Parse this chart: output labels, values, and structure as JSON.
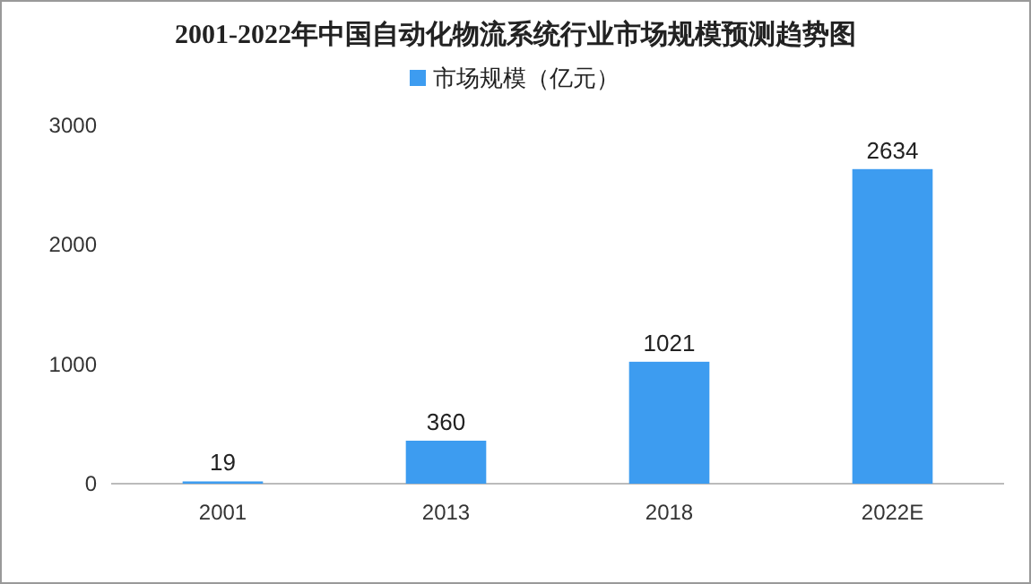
{
  "chart_data": {
    "type": "bar",
    "title": "2001-2022年中国自动化物流系统行业市场规模预测趋势图",
    "categories": [
      "2001",
      "2013",
      "2018",
      "2022E"
    ],
    "series": [
      {
        "name": "市场规模（亿元）",
        "color": "#3d9cf0",
        "values": [
          19,
          360,
          1021,
          2634
        ]
      }
    ],
    "ylim": [
      0,
      3000
    ],
    "yticks": [
      0,
      1000,
      2000,
      3000
    ],
    "data_labels": true,
    "legend": "top"
  }
}
